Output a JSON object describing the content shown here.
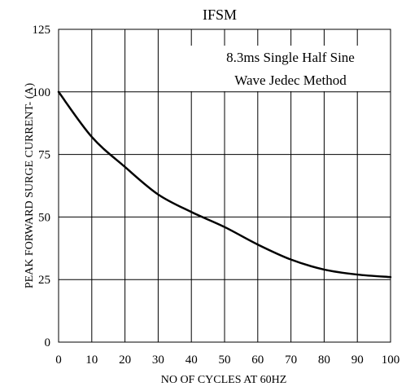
{
  "chart_data": {
    "type": "line",
    "title": "IFSM",
    "xlabel": "NO OF CYCLES AT 60HZ",
    "ylabel": "PEAK FORWARD SURGE CURRENT- (A)",
    "annotation": [
      "8.3ms Single Half Sine",
      "Wave Jedec Method"
    ],
    "xlim": [
      0,
      100
    ],
    "ylim": [
      0,
      125
    ],
    "x_ticks": [
      0,
      10,
      20,
      30,
      40,
      50,
      60,
      70,
      80,
      90,
      100
    ],
    "y_ticks": [
      0,
      25,
      50,
      75,
      100,
      125
    ],
    "grid": true,
    "series": [
      {
        "x": [
          0,
          10,
          20,
          30,
          40,
          50,
          60,
          70,
          80,
          90,
          100
        ],
        "y": [
          100,
          82,
          70,
          59,
          52,
          46,
          39,
          33,
          29,
          27,
          26
        ],
        "color": "#000000"
      }
    ]
  }
}
